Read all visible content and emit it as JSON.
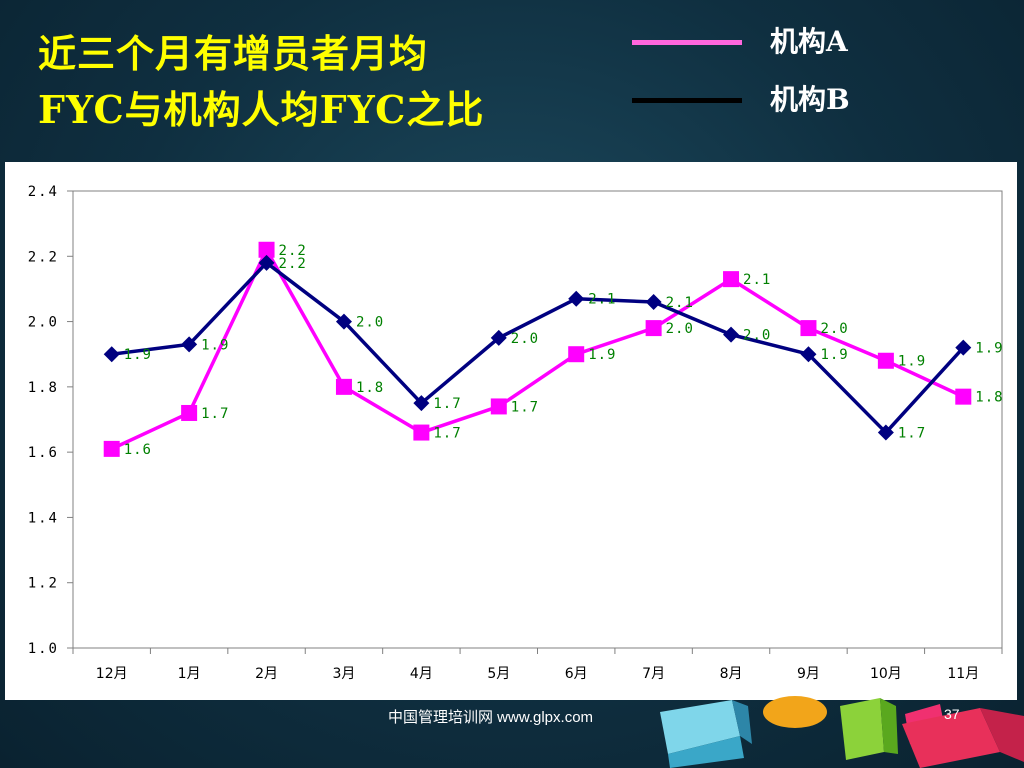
{
  "slide": {
    "title_line1": "近三个月有增员者月均",
    "title_line2": "FYC与机构人均FYC之比",
    "footer": "中国管理培训网  www.glpx.com",
    "page_number": "37"
  },
  "colors": {
    "series_a": "#ff00ff",
    "series_b": "#000080",
    "series_b_legend": "#000000",
    "label_text": "#008000",
    "title": "#ffff00"
  },
  "chart_data": {
    "type": "line",
    "categories": [
      "12月",
      "1月",
      "2月",
      "3月",
      "4月",
      "5月",
      "6月",
      "7月",
      "8月",
      "9月",
      "10月",
      "11月"
    ],
    "ylim": [
      1.0,
      2.4
    ],
    "yticks": [
      "1.0",
      "1.2",
      "1.4",
      "1.6",
      "1.8",
      "2.0",
      "2.2",
      "2.4"
    ],
    "grid": false,
    "legend_position": "top-right",
    "series": [
      {
        "name": "机构A",
        "marker": "square",
        "values": [
          1.61,
          1.72,
          2.22,
          1.8,
          1.66,
          1.74,
          1.9,
          1.98,
          2.13,
          1.98,
          1.88,
          1.77
        ],
        "labels": [
          "1.6",
          "1.7",
          "2.2",
          "1.8",
          "1.7",
          "1.7",
          "1.9",
          "2.0",
          "2.1",
          "2.0",
          "1.9",
          "1.8"
        ]
      },
      {
        "name": "机构B",
        "marker": "diamond",
        "values": [
          1.9,
          1.93,
          2.18,
          2.0,
          1.75,
          1.95,
          2.07,
          2.06,
          1.96,
          1.9,
          1.66,
          1.92
        ],
        "labels": [
          "1.9",
          "1.9",
          "2.2",
          "2.0",
          "1.7",
          "2.0",
          "2.1",
          "2.1",
          "2.0",
          "1.9",
          "1.7",
          "1.9"
        ]
      }
    ]
  }
}
